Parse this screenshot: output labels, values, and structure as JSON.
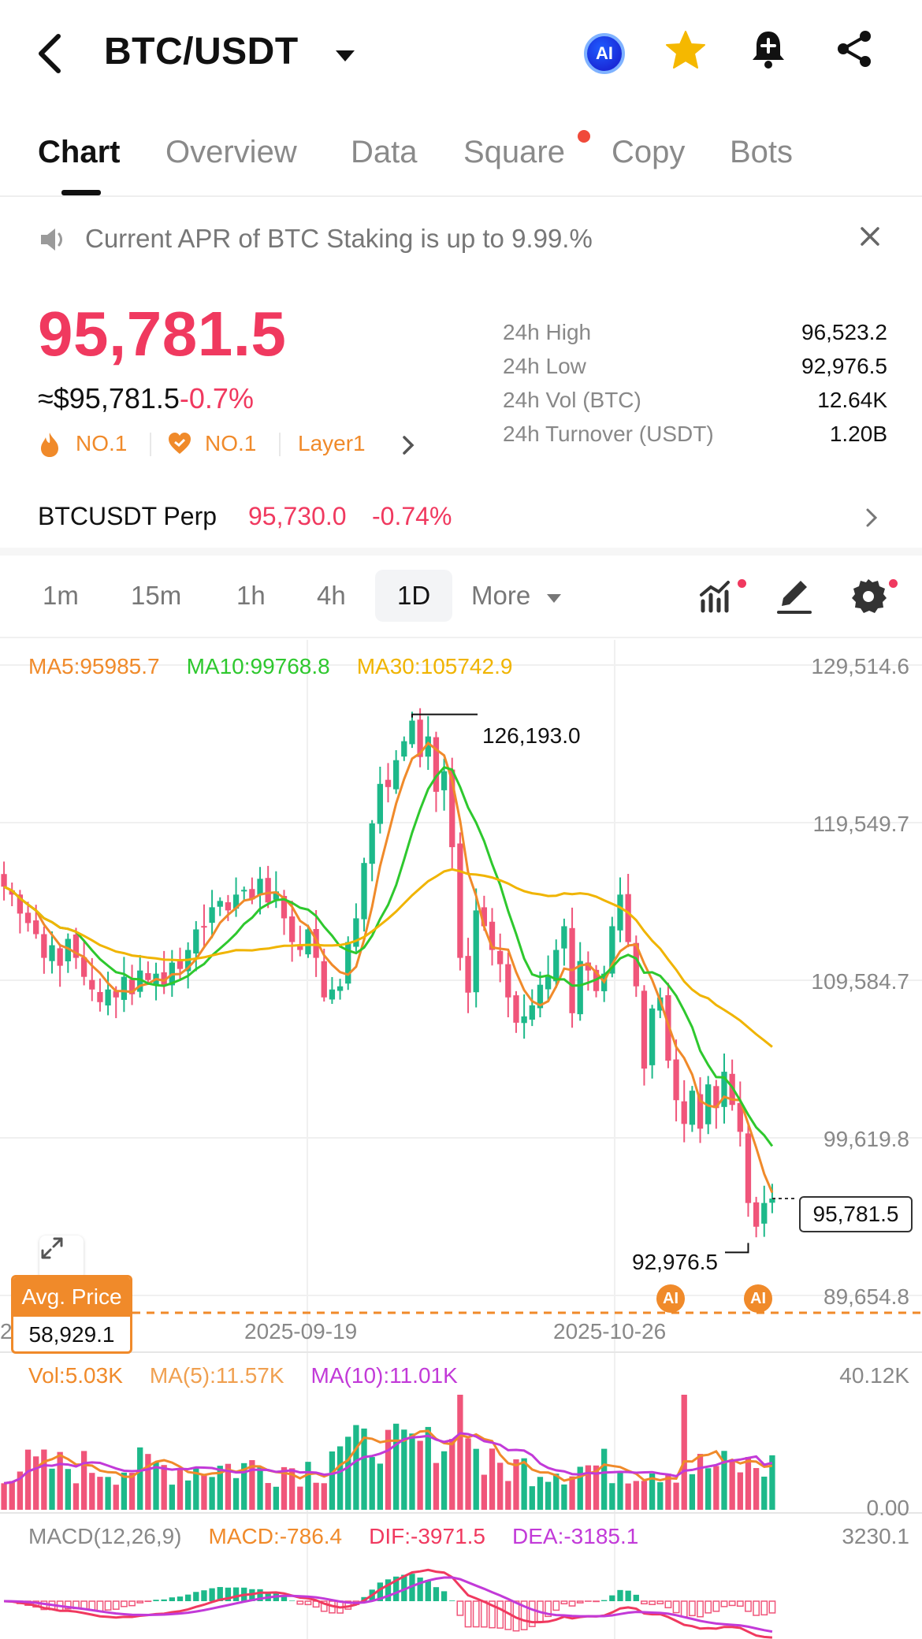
{
  "header": {
    "pair": "BTC/USDT",
    "ai_badge": "AI"
  },
  "tabs": [
    {
      "label": "Chart",
      "active": true
    },
    {
      "label": "Overview"
    },
    {
      "label": "Data"
    },
    {
      "label": "Square",
      "dot": true
    },
    {
      "label": "Copy"
    },
    {
      "label": "Bots"
    }
  ],
  "announcement": "Current APR of BTC Staking is up to 9.99.%",
  "ticker": {
    "last": "95,781.5",
    "usd_value": "≈$95,781.5",
    "change_pct": "-0.7%",
    "tags": [
      "NO.1",
      "NO.1",
      "Layer1"
    ],
    "stats": [
      {
        "label": "24h High",
        "value": "96,523.2"
      },
      {
        "label": "24h Low",
        "value": "92,976.5"
      },
      {
        "label": "24h Vol (BTC)",
        "value": "12.64K"
      },
      {
        "label": "24h Turnover (USDT)",
        "value": "1.20B"
      }
    ]
  },
  "perp": {
    "name": "BTCUSDT Perp",
    "price": "95,730.0",
    "change": "-0.74%"
  },
  "timeframes": [
    "1m",
    "15m",
    "1h",
    "4h",
    "1D",
    "More"
  ],
  "active_timeframe": "1D",
  "colors": {
    "up": "#1db98a",
    "down": "#f0557a",
    "ma5": "#f08a2a",
    "ma10": "#2ec82e",
    "ma30": "#f0b400",
    "vol_ma10": "#c23ad8",
    "accent": "#f0395f"
  },
  "chart": {
    "ma_legend": {
      "ma5": "MA5:95985.7",
      "ma10": "MA10:99768.8",
      "ma30": "MA30:105742.9"
    },
    "price_axis": [
      "129,514.6",
      "119,549.7",
      "109,584.7",
      "99,619.8",
      "89,654.8"
    ],
    "date_axis": [
      "2",
      "2025-09-19",
      "2025-10-26"
    ],
    "high_marker": "126,193.0",
    "low_marker": "92,976.5",
    "current_price": "95,781.5",
    "avg_price_label": "Avg. Price",
    "avg_price_value": "58,929.1",
    "ai_marker": "AI"
  },
  "volume": {
    "legend": {
      "vol": "Vol:5.03K",
      "ma5": "MA(5):11.57K",
      "ma10": "MA(10):11.01K"
    },
    "axis_max": "40.12K",
    "axis_min": "0.00"
  },
  "macd": {
    "legend": {
      "name": "MACD(12,26,9)",
      "macd": "MACD:-786.4",
      "dif": "DIF:-3971.5",
      "dea": "DEA:-3185.1"
    },
    "axis_max": "3230.1"
  },
  "chart_data": {
    "type": "candlestick",
    "ohlc_close_approx": [
      115500,
      115000,
      113800,
      113200,
      112500,
      111000,
      111800,
      110500,
      112200,
      111000,
      109800,
      109000,
      108200,
      109000,
      108500,
      109800,
      108700,
      110200,
      109600,
      110000,
      109300,
      110700,
      110300,
      111500,
      112800,
      113000,
      114200,
      114600,
      114000,
      115000,
      115300,
      114700,
      116000,
      114500,
      115200,
      113500,
      112000,
      111500,
      112800,
      111000,
      108500,
      109000,
      109200,
      112000,
      113500,
      117000,
      119500,
      122000,
      121800,
      123500,
      124700,
      126000,
      123700,
      125000,
      121500,
      122800,
      118000,
      111000,
      108800,
      114000,
      113000,
      111500,
      110600,
      108500,
      106900,
      107300,
      108000,
      109300,
      109800,
      111500,
      113000,
      107500,
      110800,
      110200,
      108900,
      110000,
      113000,
      115000,
      112000,
      109200,
      104000,
      107800,
      108500,
      104500,
      102000,
      100500,
      102600,
      100200,
      103000,
      101500,
      103800,
      101700,
      100000,
      95500,
      94000,
      95500,
      95781.5
    ],
    "high_marker": 126193.0,
    "low_marker": 92976.5,
    "ma5_last": 95985.7,
    "ma10_last": 99768.8,
    "ma30_last": 105742.9,
    "ylim": [
      89654.8,
      129514.6
    ]
  }
}
